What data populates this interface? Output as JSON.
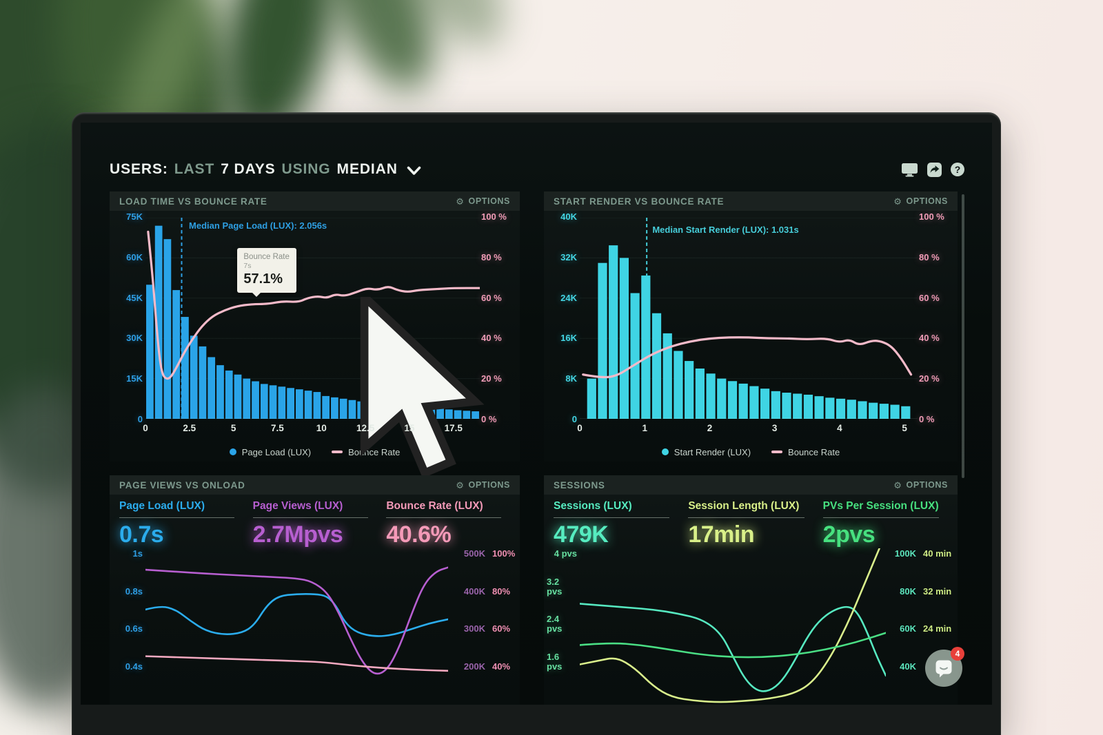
{
  "header": {
    "segments": [
      {
        "text": "USERS:",
        "style": "strong"
      },
      {
        "text": "LAST",
        "style": "muted"
      },
      {
        "text": "7 DAYS",
        "style": "strong"
      },
      {
        "text": "USING",
        "style": "muted"
      },
      {
        "text": "MEDIAN",
        "style": "strong"
      }
    ],
    "help_glyph": "?"
  },
  "chat_badge": "4",
  "panels": [
    {
      "title": "LOAD TIME VS BOUNCE RATE",
      "options": "OPTIONS",
      "y_left": [
        "75K",
        "60K",
        "45K",
        "30K",
        "15K",
        "0"
      ],
      "y_right": [
        "100 %",
        "80 %",
        "60 %",
        "40 %",
        "20 %",
        "0 %"
      ],
      "median_label": "Median Page Load (LUX): 2.056s",
      "tooltip": {
        "title": "Bounce Rate",
        "sub": "7s",
        "value": "57.1%"
      },
      "legend": [
        {
          "label": "Page Load (LUX)"
        },
        {
          "label": "Bounce Rate"
        }
      ]
    },
    {
      "title": "START RENDER VS BOUNCE RATE",
      "options": "OPTIONS",
      "y_left": [
        "40K",
        "32K",
        "24K",
        "16K",
        "8K",
        "0"
      ],
      "y_right": [
        "100 %",
        "80 %",
        "60 %",
        "40 %",
        "20 %",
        "0 %"
      ],
      "median_label": "Median Start Render (LUX): 1.031s",
      "legend": [
        {
          "label": "Start Render (LUX)"
        },
        {
          "label": "Bounce Rate"
        }
      ]
    },
    {
      "title": "PAGE VIEWS VS ONLOAD",
      "options": "OPTIONS",
      "metrics": [
        {
          "label": "Page Load (LUX)",
          "value": "0.7s"
        },
        {
          "label": "Page Views (LUX)",
          "value": "2.7Mpvs"
        },
        {
          "label": "Bounce Rate (LUX)",
          "value": "40.6%"
        }
      ],
      "y_left": [
        "1s",
        "0.8s",
        "0.6s",
        "0.4s"
      ],
      "y_right_rows": [
        [
          "500K",
          "100%"
        ],
        [
          "400K",
          "80%"
        ],
        [
          "300K",
          "60%"
        ],
        [
          "200K",
          "40%"
        ]
      ]
    },
    {
      "title": "SESSIONS",
      "options": "OPTIONS",
      "metrics": [
        {
          "label": "Sessions (LUX)",
          "value": "479K"
        },
        {
          "label": "Session Length (LUX)",
          "value": "17min"
        },
        {
          "label": "PVs Per Session (LUX)",
          "value": "2pvs"
        }
      ],
      "y_left": [
        "4 pvs",
        "3.2 pvs",
        "2.4 pvs",
        "1.6 pvs"
      ],
      "y_right_rows": [
        [
          "100K",
          "40 min"
        ],
        [
          "80K",
          "32 min"
        ],
        [
          "60K",
          "24 min"
        ],
        [
          "40K",
          ""
        ]
      ]
    }
  ],
  "chart_data": [
    {
      "type": "bar-line",
      "title": "LOAD TIME VS BOUNCE RATE",
      "x_max": 19,
      "x_ticks": [
        0,
        2.5,
        5,
        7.5,
        10,
        12.5,
        15,
        17.5
      ],
      "bar_series": "Page Load (LUX)",
      "bar_color": "#2aa4e8",
      "bar_x_start": 0,
      "bar_x_step": 0.5,
      "y_left_max_k": 75,
      "bars_k": [
        50,
        72,
        67,
        48,
        38,
        31,
        27,
        23,
        20,
        18,
        16.5,
        15,
        14,
        13,
        12.5,
        12,
        11.5,
        11,
        10.5,
        10,
        8.5,
        8,
        7.5,
        7,
        6.5,
        6,
        5.5,
        5.2,
        5,
        4.8,
        4.5,
        4.2,
        4,
        3.8,
        3.5,
        3.2,
        3,
        2.8
      ],
      "line_series": "Bounce Rate",
      "line_color": "#f4bac9",
      "line_pct_points": [
        [
          0.15,
          93
        ],
        [
          0.4,
          72
        ],
        [
          0.7,
          38
        ],
        [
          0.9,
          24
        ],
        [
          1.1,
          20
        ],
        [
          1.4,
          20
        ],
        [
          1.8,
          26
        ],
        [
          2.2,
          33
        ],
        [
          2.7,
          40
        ],
        [
          3.2,
          46
        ],
        [
          3.8,
          51
        ],
        [
          4.5,
          54
        ],
        [
          5.2,
          56
        ],
        [
          6,
          57
        ],
        [
          7,
          57.1
        ],
        [
          7.8,
          58.5
        ],
        [
          8.7,
          58
        ],
        [
          9.2,
          60
        ],
        [
          9.8,
          61
        ],
        [
          10.3,
          60
        ],
        [
          10.8,
          62
        ],
        [
          11.3,
          61
        ],
        [
          12,
          63
        ],
        [
          12.6,
          65
        ],
        [
          13.2,
          64
        ],
        [
          13.8,
          66
        ],
        [
          14.3,
          64
        ],
        [
          14.9,
          63
        ],
        [
          15.5,
          64
        ],
        [
          16.5,
          64.5
        ],
        [
          17.5,
          65
        ],
        [
          19,
          65
        ]
      ],
      "median_x": 2.056,
      "median_color": "#2e9fe2",
      "tooltip_at": {
        "x_s": 7,
        "bounce_pct": 57.1
      }
    },
    {
      "type": "bar-line",
      "title": "START RENDER VS BOUNCE RATE",
      "x_max": 5.2,
      "x_ticks": [
        0,
        1,
        2,
        3,
        4,
        5
      ],
      "bar_series": "Start Render (LUX)",
      "bar_color": "#3fd4e4",
      "bar_x_start": 0.1,
      "bar_x_step": 0.1667,
      "y_left_max_k": 40,
      "bars_k": [
        8,
        31,
        34.5,
        32,
        25,
        28.5,
        21,
        17,
        13.5,
        11.5,
        10,
        9,
        8,
        7.5,
        7,
        6.5,
        6,
        5.5,
        5.2,
        5,
        4.8,
        4.5,
        4.2,
        4,
        3.8,
        3.5,
        3.2,
        3,
        2.8,
        2.5
      ],
      "line_series": "Bounce Rate",
      "line_color": "#f4bac9",
      "line_pct_points": [
        [
          0.05,
          22
        ],
        [
          0.3,
          20.5
        ],
        [
          0.55,
          21
        ],
        [
          0.8,
          26
        ],
        [
          1.1,
          32
        ],
        [
          1.4,
          36
        ],
        [
          1.7,
          38.5
        ],
        [
          2,
          40
        ],
        [
          2.3,
          40.5
        ],
        [
          2.6,
          40.5
        ],
        [
          2.9,
          40
        ],
        [
          3.2,
          40
        ],
        [
          3.5,
          39.5
        ],
        [
          3.8,
          40
        ],
        [
          4,
          38
        ],
        [
          4.15,
          39.5
        ],
        [
          4.3,
          36.5
        ],
        [
          4.5,
          39
        ],
        [
          4.65,
          38.5
        ],
        [
          4.8,
          36
        ],
        [
          4.95,
          30
        ],
        [
          5.1,
          22
        ]
      ],
      "median_x": 1.031,
      "median_color": "#44ccd8"
    },
    {
      "type": "line",
      "title": "PAGE VIEWS VS ONLOAD",
      "x_domain": "last 7 days (percent of range)",
      "axes": {
        "seconds": {
          "min": 0.22,
          "max": 1.035
        },
        "pageviews_k": {
          "min": 110,
          "max": 517
        },
        "percent": {
          "min": 22,
          "max": 103.5
        }
      },
      "series": [
        {
          "name": "Page Load (LUX)",
          "current": "0.7s",
          "color": "#2bacec",
          "axis": "seconds",
          "points": [
            [
              0,
              0.72
            ],
            [
              5,
              0.74
            ],
            [
              10,
              0.72
            ],
            [
              15,
              0.66
            ],
            [
              20,
              0.61
            ],
            [
              26,
              0.59
            ],
            [
              32,
              0.6
            ],
            [
              36,
              0.64
            ],
            [
              40,
              0.74
            ],
            [
              44,
              0.79
            ],
            [
              50,
              0.8
            ],
            [
              56,
              0.8
            ],
            [
              60,
              0.79
            ],
            [
              63,
              0.74
            ],
            [
              66,
              0.65
            ],
            [
              70,
              0.6
            ],
            [
              76,
              0.58
            ],
            [
              82,
              0.59
            ],
            [
              88,
              0.62
            ],
            [
              94,
              0.65
            ],
            [
              100,
              0.67
            ]
          ]
        },
        {
          "name": "Page Views (LUX)",
          "current": "2.7Mpvs",
          "color": "#b75fd0",
          "axis": "pageviews_k",
          "points": [
            [
              0,
              462
            ],
            [
              10,
              457
            ],
            [
              20,
              452
            ],
            [
              30,
              448
            ],
            [
              40,
              444
            ],
            [
              50,
              440
            ],
            [
              55,
              432
            ],
            [
              60,
              405
            ],
            [
              64,
              350
            ],
            [
              68,
              280
            ],
            [
              72,
              220
            ],
            [
              76,
              190
            ],
            [
              80,
              205
            ],
            [
              84,
              265
            ],
            [
              88,
              350
            ],
            [
              92,
              425
            ],
            [
              96,
              458
            ],
            [
              100,
              468
            ]
          ]
        },
        {
          "name": "Bounce Rate (LUX)",
          "current": "40.6%",
          "color": "#f3a9c0",
          "axis": "percent",
          "points": [
            [
              0,
              48
            ],
            [
              10,
              47.5
            ],
            [
              20,
              47
            ],
            [
              30,
              46.5
            ],
            [
              40,
              46
            ],
            [
              50,
              45.5
            ],
            [
              58,
              45
            ],
            [
              64,
              44
            ],
            [
              70,
              43
            ],
            [
              78,
              42
            ],
            [
              86,
              41.3
            ],
            [
              93,
              40.8
            ],
            [
              100,
              40.5
            ]
          ]
        }
      ]
    },
    {
      "type": "line",
      "title": "SESSIONS",
      "x_domain": "last 7 days (percent of range)",
      "axes": {
        "pvs": {
          "min": 0.88,
          "max": 4.14
        },
        "sessions_k": {
          "min": 22,
          "max": 103.5
        },
        "minutes": {
          "min": 19.2,
          "max": 40.9
        }
      },
      "series": [
        {
          "name": "Sessions (LUX)",
          "current": "479K",
          "color": "#56e8c0",
          "axis": "sessions_k",
          "points": [
            [
              0,
              75
            ],
            [
              8,
              74
            ],
            [
              16,
              73
            ],
            [
              24,
              72
            ],
            [
              32,
              70
            ],
            [
              40,
              67
            ],
            [
              46,
              60
            ],
            [
              50,
              48
            ],
            [
              54,
              36
            ],
            [
              58,
              30
            ],
            [
              62,
              30
            ],
            [
              66,
              35
            ],
            [
              70,
              45
            ],
            [
              74,
              57
            ],
            [
              78,
              66
            ],
            [
              83,
              72
            ],
            [
              88,
              74
            ],
            [
              91,
              70
            ],
            [
              94,
              60
            ],
            [
              97,
              48
            ],
            [
              100,
              38
            ]
          ]
        },
        {
          "name": "Session Length (LUX)",
          "current": "17min",
          "color": "#d9ee8b",
          "axis": "minutes",
          "points": [
            [
              0,
              25
            ],
            [
              6,
              25.5
            ],
            [
              12,
              26
            ],
            [
              18,
              24.5
            ],
            [
              24,
              22
            ],
            [
              30,
              20.5
            ],
            [
              38,
              20
            ],
            [
              46,
              19.8
            ],
            [
              54,
              20
            ],
            [
              62,
              20.3
            ],
            [
              70,
              21
            ],
            [
              76,
              22.5
            ],
            [
              82,
              26
            ],
            [
              88,
              31
            ],
            [
              93,
              36
            ],
            [
              97,
              40
            ],
            [
              100,
              43
            ]
          ]
        },
        {
          "name": "PVs Per Session (LUX)",
          "current": "2pvs",
          "color": "#4ade84",
          "axis": "pvs",
          "points": [
            [
              0,
              2.15
            ],
            [
              10,
              2.2
            ],
            [
              20,
              2.15
            ],
            [
              30,
              2.05
            ],
            [
              40,
              1.95
            ],
            [
              50,
              1.9
            ],
            [
              60,
              1.9
            ],
            [
              70,
              1.95
            ],
            [
              80,
              2.05
            ],
            [
              90,
              2.2
            ],
            [
              100,
              2.4
            ]
          ]
        }
      ]
    }
  ]
}
